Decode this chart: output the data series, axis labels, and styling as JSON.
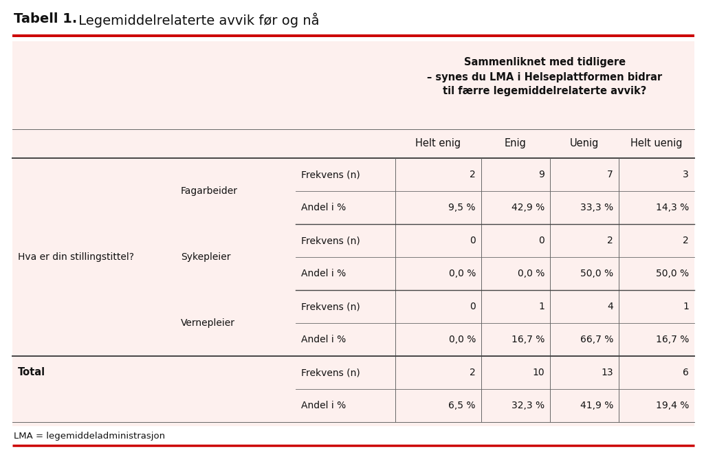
{
  "title_bold": "Tabell 1.",
  "title_normal": " Legemiddelrelaterte avvik før og nå",
  "header_main": "Sammenliknet med tidligere\n– synes du LMA i Helseplattformen bidrar\ntil færre legemiddelrelaterte avvik?",
  "col_headers": [
    "Helt enig",
    "Enig",
    "Uenig",
    "Helt uenig"
  ],
  "row_question": "Hva er din stillingstittel?",
  "groups": [
    {
      "name": "Fagarbeider",
      "rows": [
        {
          "label": "Frekvens (n)",
          "values": [
            "2",
            "9",
            "7",
            "3"
          ]
        },
        {
          "label": "Andel i %",
          "values": [
            "9,5 %",
            "42,9 %",
            "33,3 %",
            "14,3 %"
          ]
        }
      ]
    },
    {
      "name": "Sykepleier",
      "rows": [
        {
          "label": "Frekvens (n)",
          "values": [
            "0",
            "0",
            "2",
            "2"
          ]
        },
        {
          "label": "Andel i %",
          "values": [
            "0,0 %",
            "0,0 %",
            "50,0 %",
            "50,0 %"
          ]
        }
      ]
    },
    {
      "name": "Vernepleier",
      "rows": [
        {
          "label": "Frekvens (n)",
          "values": [
            "0",
            "1",
            "4",
            "1"
          ]
        },
        {
          "label": "Andel i %",
          "values": [
            "0,0 %",
            "16,7 %",
            "66,7 %",
            "16,7 %"
          ]
        }
      ]
    }
  ],
  "total_rows": [
    {
      "label": "Frekvens (n)",
      "values": [
        "2",
        "10",
        "13",
        "6"
      ]
    },
    {
      "label": "Andel i %",
      "values": [
        "6,5 %",
        "32,3 %",
        "41,9 %",
        "19,4 %"
      ]
    }
  ],
  "footnote": "LMA = legemiddeladministrasjon",
  "bg_color": "#fdf0ee",
  "white_bg": "#ffffff",
  "red_line_color": "#cc0000",
  "border_color": "#666666",
  "thick_border": "#444444",
  "text_color": "#111111"
}
